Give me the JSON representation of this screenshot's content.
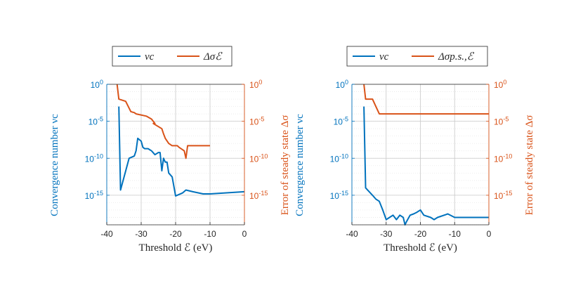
{
  "colors": {
    "left_axis": "#0072BD",
    "right_axis": "#D95319",
    "grid": "#c8c8c8",
    "frame": "#262626"
  },
  "chart_data": [
    {
      "type": "line",
      "x_label": "Threshold ℰ (eV)",
      "y_label_left": "Convergence number νc",
      "y_label_right": "Error of steady state Δσ",
      "xlim": [
        -40,
        0
      ],
      "x_ticks": [
        "-40",
        "-30",
        "-20",
        "-10",
        "0"
      ],
      "ylim_left": [
        1e-19,
        1
      ],
      "ylim_right": [
        1e-19,
        1
      ],
      "y_scale": "log",
      "y_ticks_left": [
        "10^0",
        "10^-5",
        "10^-10",
        "10^-15"
      ],
      "y_ticks_right": [
        "10^0",
        "10^-5",
        "10^-10",
        "10^-15"
      ],
      "grid": true,
      "legend_position": "top-center",
      "series": [
        {
          "name": "νc",
          "axis": "left",
          "color": "#0072BD",
          "x": [
            -36.5,
            -36,
            -33.5,
            -32,
            -31.5,
            -31,
            -30,
            -29.5,
            -29,
            -28,
            -27,
            -26,
            -25,
            -24.5,
            -24,
            -23.5,
            -23,
            -22.5,
            -22,
            -21,
            -20,
            -18,
            -17,
            -15,
            -12,
            -10,
            0
          ],
          "y": [
            0.001,
            5e-15,
            1e-10,
            2e-10,
            1e-09,
            5e-08,
            2e-08,
            3e-09,
            2e-09,
            2e-09,
            1e-09,
            3e-10,
            6e-10,
            6e-10,
            2e-12,
            1e-10,
            3e-11,
            3e-11,
            1e-12,
            3e-13,
            8e-16,
            2e-15,
            5e-15,
            3e-15,
            1.5e-15,
            1.5e-15,
            3e-15
          ]
        },
        {
          "name": "Δσℰ",
          "axis": "right",
          "color": "#D95319",
          "x": [
            -37,
            -36.5,
            -34.5,
            -33,
            -32,
            -31.5,
            -28.5,
            -27,
            -26,
            -26.5,
            -24,
            -23.5,
            -23,
            -22,
            -21,
            -19.5,
            -19,
            -17.5,
            -17,
            -16.5,
            -10
          ],
          "y": [
            1,
            0.01,
            0.005,
            0.0002,
            0.00015,
            0.0001,
            5e-05,
            2e-05,
            5e-06,
            5e-06,
            1e-06,
            2e-07,
            5e-08,
            1e-08,
            5e-09,
            5e-09,
            3e-09,
            1e-09,
            1e-10,
            5e-09,
            5e-09
          ]
        }
      ]
    },
    {
      "type": "line",
      "x_label": "Threshold ℰ (eV)",
      "y_label_left": "Convergence number νc",
      "y_label_right": "Error of steady state Δσ",
      "xlim": [
        -40,
        0
      ],
      "x_ticks": [
        "-40",
        "-30",
        "-20",
        "-10",
        "0"
      ],
      "ylim_left": [
        1e-19,
        1
      ],
      "ylim_right": [
        1e-19,
        1
      ],
      "y_scale": "log",
      "y_ticks_left": [
        "10^0",
        "10^-5",
        "10^-10",
        "10^-15"
      ],
      "y_ticks_right": [
        "10^0",
        "10^-5",
        "10^-10",
        "10^-15"
      ],
      "grid": true,
      "legend_position": "top-center",
      "series": [
        {
          "name": "νc",
          "axis": "left",
          "color": "#0072BD",
          "x": [
            -36.5,
            -36,
            -34,
            -33,
            -32,
            -31,
            -30,
            -29,
            -28,
            -27,
            -26,
            -25,
            -24.5,
            -24,
            -23,
            -22,
            -21,
            -20,
            -19,
            -17,
            -16,
            -15,
            -12,
            -10,
            0
          ],
          "y": [
            0.001,
            1e-14,
            1e-15,
            3e-16,
            1.5e-16,
            1e-17,
            5e-19,
            1e-18,
            2e-18,
            5e-19,
            2e-18,
            1e-18,
            1e-19,
            3e-19,
            2e-18,
            3e-18,
            5e-18,
            1e-17,
            2e-18,
            1e-18,
            5e-19,
            1e-18,
            3e-18,
            1e-18,
            1e-18
          ]
        },
        {
          "name": "Δσp.s.,ℰ",
          "axis": "right",
          "color": "#D95319",
          "x": [
            -36.5,
            -36,
            -34,
            -33,
            -32,
            0
          ],
          "y": [
            1,
            0.01,
            0.01,
            0.001,
            0.0001,
            0.0001
          ]
        }
      ]
    }
  ]
}
